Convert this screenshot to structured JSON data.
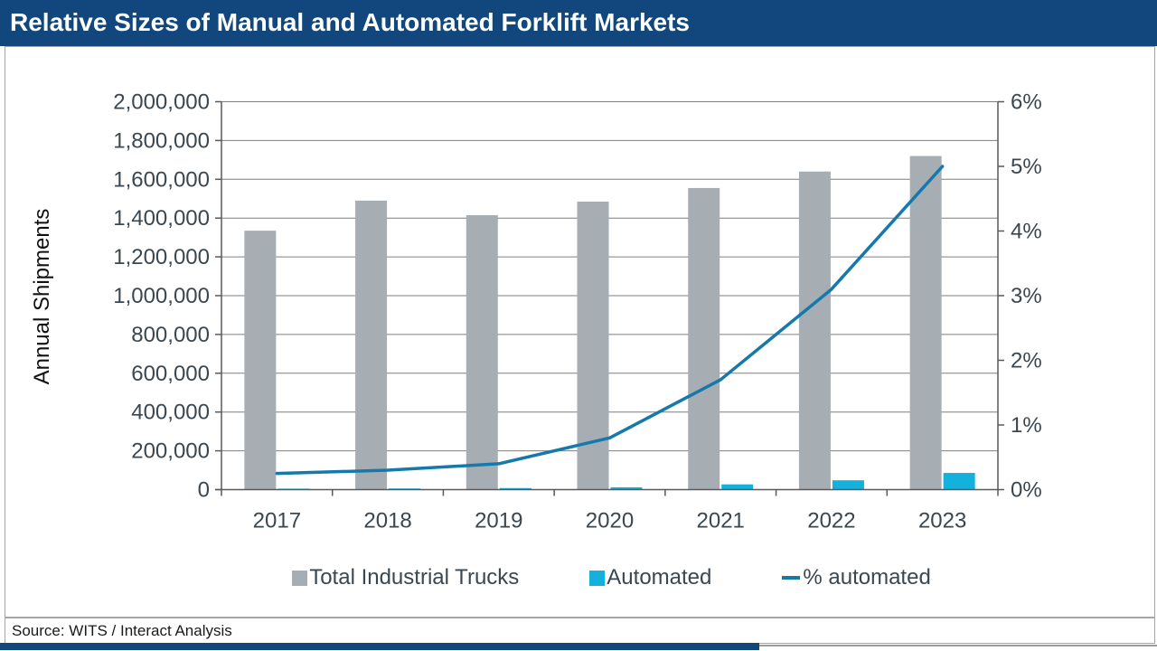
{
  "title_bar": {
    "title": "Relative Sizes of Manual and Automated Forklift Markets"
  },
  "footer": {
    "source": "Source: WITS / Interact Analysis"
  },
  "colors": {
    "navy": "#12477d",
    "bar_total": "#a6aeb4",
    "bar_automated": "#14b1dc",
    "pct_line": "#1579ab",
    "gridline": "#7f7f7f",
    "axis": "#595959",
    "tick_text": "#3b4750"
  },
  "chart_data": {
    "type": "bar",
    "subtype": "combo-bar-line",
    "categories": [
      "2017",
      "2018",
      "2019",
      "2020",
      "2021",
      "2022",
      "2023"
    ],
    "series": [
      {
        "name": "Total Industrial Trucks",
        "type": "bar",
        "axis": "left",
        "color_key": "bar_total",
        "values": [
          1335000,
          1490000,
          1415000,
          1485000,
          1555000,
          1640000,
          1720000
        ]
      },
      {
        "name": "Automated",
        "type": "bar",
        "axis": "left",
        "color_key": "bar_automated",
        "values": [
          5000,
          6000,
          8000,
          12000,
          27000,
          48000,
          86000
        ]
      },
      {
        "name": "% automated",
        "type": "line",
        "axis": "right",
        "color_key": "pct_line",
        "values": [
          0.25,
          0.3,
          0.4,
          0.8,
          1.7,
          3.1,
          5.0
        ]
      }
    ],
    "left_axis": {
      "title": "Annual Shipments",
      "min": 0,
      "max": 2000000,
      "step": 200000,
      "tick_labels": [
        "0",
        "200,000",
        "400,000",
        "600,000",
        "800,000",
        "1,000,000",
        "1,200,000",
        "1,400,000",
        "1,600,000",
        "1,800,000",
        "2,000,000"
      ]
    },
    "right_axis": {
      "min": 0,
      "max": 6,
      "step": 1,
      "tick_labels": [
        "0%",
        "1%",
        "2%",
        "3%",
        "4%",
        "5%",
        "6%"
      ]
    },
    "grid": true,
    "legend_position": "bottom",
    "legend": [
      {
        "label": "Total Industrial Trucks",
        "swatch": "square",
        "color_key": "bar_total"
      },
      {
        "label": "Automated",
        "swatch": "square",
        "color_key": "bar_automated"
      },
      {
        "label": "% automated",
        "swatch": "line",
        "color_key": "pct_line"
      }
    ]
  }
}
